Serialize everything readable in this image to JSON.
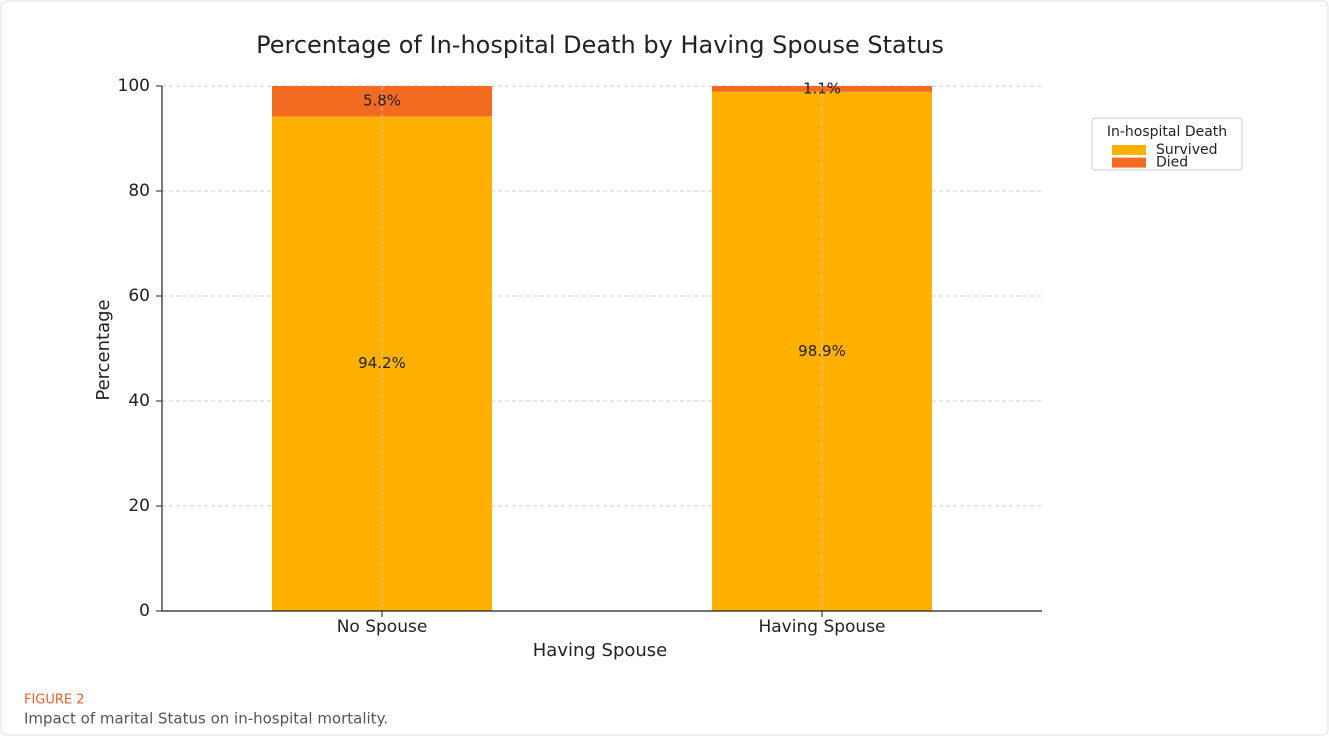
{
  "chart_data": {
    "type": "stacked_bar",
    "title": "Percentage of In-hospital Death by Having Spouse Status",
    "x_label": "Having Spouse",
    "y_label": "Percentage",
    "categories": [
      "No Spouse",
      "Having Spouse"
    ],
    "series": [
      {
        "name": "Survived",
        "color": "#ffb000",
        "values": [
          94.2,
          98.9
        ],
        "value_labels": [
          "94.2%",
          "98.9%"
        ]
      },
      {
        "name": "Died",
        "color": "#f26b21",
        "values": [
          5.8,
          1.1
        ],
        "value_labels": [
          "5.8%",
          "1.1%"
        ]
      }
    ],
    "ylim": [
      0,
      100
    ],
    "yticks": [
      0,
      20,
      40,
      60,
      80,
      100
    ],
    "grid": true,
    "legend_title": "In-hospital Death",
    "legend_position": "outside right"
  },
  "figure_label": "FIGURE 2",
  "caption": "Impact of marital Status on in-hospital mortality."
}
